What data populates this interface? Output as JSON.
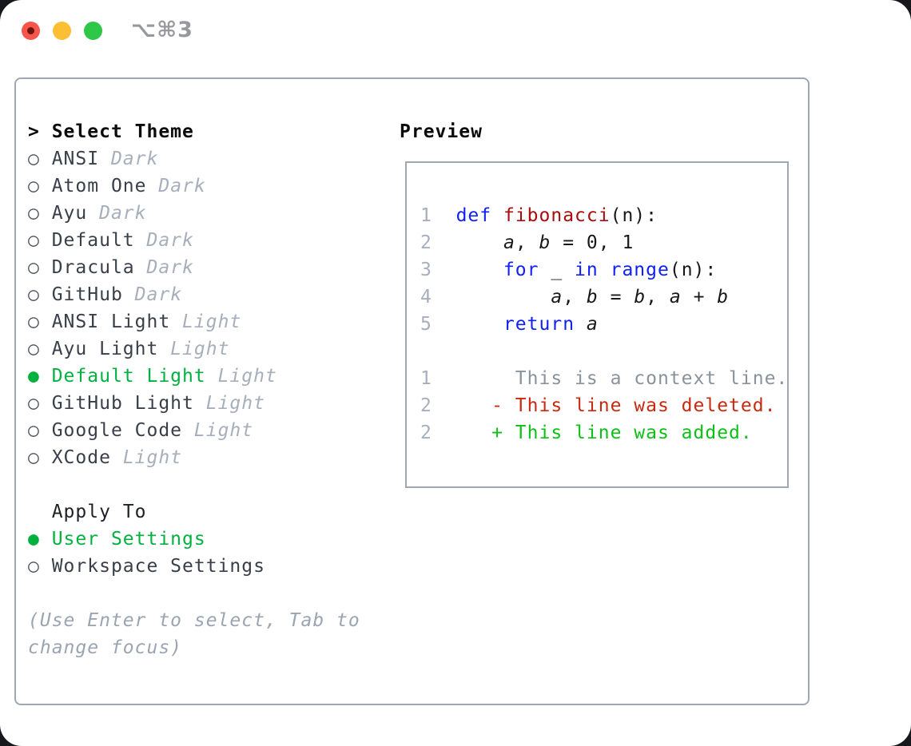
{
  "titlebar": {
    "shortcut": "⌥⌘3",
    "buttons": [
      "close",
      "minimize",
      "zoom"
    ]
  },
  "icons": {
    "pointer": "> ",
    "radio_unselected": "○ ",
    "radio_selected": "● ",
    "indent": "  "
  },
  "theme_list": {
    "header": "Select Theme",
    "items": [
      {
        "name": "ANSI",
        "tag": "Dark",
        "selected": false
      },
      {
        "name": "Atom One",
        "tag": "Dark",
        "selected": false
      },
      {
        "name": "Ayu",
        "tag": "Dark",
        "selected": false
      },
      {
        "name": "Default",
        "tag": "Dark",
        "selected": false
      },
      {
        "name": "Dracula",
        "tag": "Dark",
        "selected": false
      },
      {
        "name": "GitHub",
        "tag": "Dark",
        "selected": false
      },
      {
        "name": "ANSI Light",
        "tag": "Light",
        "selected": false
      },
      {
        "name": "Ayu Light",
        "tag": "Light",
        "selected": false
      },
      {
        "name": "Default Light",
        "tag": "Light",
        "selected": true
      },
      {
        "name": "GitHub Light",
        "tag": "Light",
        "selected": false
      },
      {
        "name": "Google Code",
        "tag": "Light",
        "selected": false
      },
      {
        "name": "XCode",
        "tag": "Light",
        "selected": false
      }
    ]
  },
  "apply_to": {
    "header": "Apply To",
    "options": [
      {
        "name": "User Settings",
        "selected": true
      },
      {
        "name": "Workspace Settings",
        "selected": false
      }
    ]
  },
  "help": {
    "line1": "(Use Enter to select, Tab to",
    "line2": "change focus)"
  },
  "preview": {
    "title": "Preview",
    "code_lines": [
      {
        "num": "1",
        "segments": [
          {
            "text": "  ",
            "style": "plain"
          },
          {
            "text": "def",
            "style": "keyword"
          },
          {
            "text": " ",
            "style": "plain"
          },
          {
            "text": "fibonacci",
            "style": "function"
          },
          {
            "text": "(n):",
            "style": "plain"
          }
        ]
      },
      {
        "num": "2",
        "segments": [
          {
            "text": "      ",
            "style": "plain"
          },
          {
            "text": "a",
            "style": "variable"
          },
          {
            "text": ", ",
            "style": "plain"
          },
          {
            "text": "b",
            "style": "variable"
          },
          {
            "text": " = 0, 1",
            "style": "plain"
          }
        ]
      },
      {
        "num": "3",
        "segments": [
          {
            "text": "      ",
            "style": "plain"
          },
          {
            "text": "for",
            "style": "keyword"
          },
          {
            "text": " _ ",
            "style": "plain"
          },
          {
            "text": "in",
            "style": "keyword"
          },
          {
            "text": " ",
            "style": "plain"
          },
          {
            "text": "range",
            "style": "keyword"
          },
          {
            "text": "(n):",
            "style": "plain"
          }
        ]
      },
      {
        "num": "4",
        "segments": [
          {
            "text": "          ",
            "style": "plain"
          },
          {
            "text": "a",
            "style": "variable"
          },
          {
            "text": ", ",
            "style": "plain"
          },
          {
            "text": "b",
            "style": "variable"
          },
          {
            "text": " = ",
            "style": "plain"
          },
          {
            "text": "b",
            "style": "variable"
          },
          {
            "text": ", ",
            "style": "plain"
          },
          {
            "text": "a",
            "style": "variable"
          },
          {
            "text": " + ",
            "style": "plain"
          },
          {
            "text": "b",
            "style": "variable"
          }
        ]
      },
      {
        "num": "5",
        "segments": [
          {
            "text": "      ",
            "style": "plain"
          },
          {
            "text": "return",
            "style": "keyword"
          },
          {
            "text": " ",
            "style": "plain"
          },
          {
            "text": "a",
            "style": "variable"
          }
        ]
      }
    ],
    "diff_lines": [
      {
        "num": "1",
        "segments": [
          {
            "text": "       This is a context line.",
            "style": "context"
          }
        ]
      },
      {
        "num": "2",
        "segments": [
          {
            "text": "     - This line was deleted.",
            "style": "deleted"
          }
        ]
      },
      {
        "num": "2",
        "segments": [
          {
            "text": "     + This line was added.",
            "style": "added"
          }
        ]
      }
    ]
  },
  "colors": {
    "selection_green": "#00b140",
    "diff_added_green": "#0cc115",
    "diff_deleted_red": "#c9290e",
    "diff_context_gray": "#8a929c",
    "keyword_blue": "#1021f2",
    "function_red": "#a80c0c",
    "tag_gray": "#a6afbb",
    "border_gray": "#9fa7b2",
    "traffic_red": "#f5554a",
    "traffic_yellow": "#fcbe33",
    "traffic_green": "#2ec748"
  }
}
